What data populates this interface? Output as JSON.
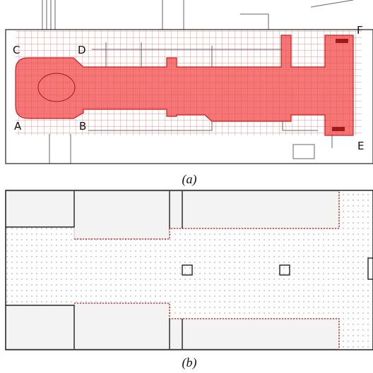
{
  "panel_a": {
    "corner_labels": [
      "C",
      "D",
      "F",
      "A",
      "B",
      "E"
    ],
    "caption": "(a)"
  },
  "panel_b": {
    "caption": "(b)"
  }
}
